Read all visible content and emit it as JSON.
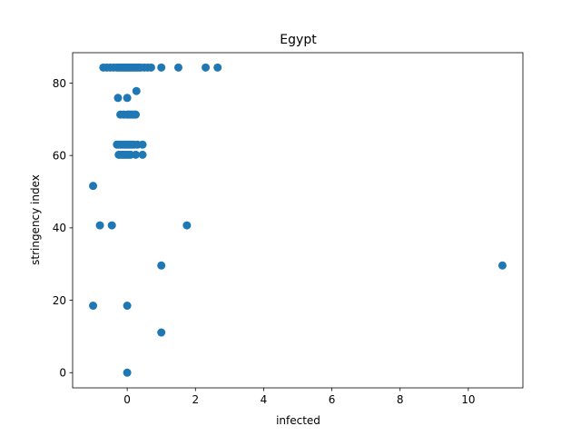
{
  "chart_data": {
    "type": "scatter",
    "title": "Egypt",
    "xlabel": "infected",
    "ylabel": "stringency index",
    "xlim": [
      -1.6,
      11.6
    ],
    "ylim": [
      -4.2,
      88.4
    ],
    "xticks": [
      0,
      2,
      4,
      6,
      8,
      10
    ],
    "yticks": [
      0,
      20,
      40,
      60,
      80
    ],
    "grid": false,
    "color": "#1f77b4",
    "points": [
      {
        "x": -0.7,
        "y": 84.3
      },
      {
        "x": -0.6,
        "y": 84.3
      },
      {
        "x": -0.5,
        "y": 84.3
      },
      {
        "x": -0.4,
        "y": 84.3
      },
      {
        "x": -0.3,
        "y": 84.3
      },
      {
        "x": -0.25,
        "y": 84.3
      },
      {
        "x": -0.2,
        "y": 84.3
      },
      {
        "x": -0.15,
        "y": 84.3
      },
      {
        "x": -0.1,
        "y": 84.3
      },
      {
        "x": -0.05,
        "y": 84.3
      },
      {
        "x": 0,
        "y": 84.3
      },
      {
        "x": 0.05,
        "y": 84.3
      },
      {
        "x": 0.1,
        "y": 84.3
      },
      {
        "x": 0.15,
        "y": 84.3
      },
      {
        "x": 0.2,
        "y": 84.3
      },
      {
        "x": 0.25,
        "y": 84.3
      },
      {
        "x": 0.3,
        "y": 84.3
      },
      {
        "x": 0.35,
        "y": 84.3
      },
      {
        "x": 0.4,
        "y": 84.3
      },
      {
        "x": 0.5,
        "y": 84.3
      },
      {
        "x": 0.6,
        "y": 84.3
      },
      {
        "x": 0.7,
        "y": 84.3
      },
      {
        "x": 1.0,
        "y": 84.3
      },
      {
        "x": 1.5,
        "y": 84.3
      },
      {
        "x": 2.3,
        "y": 84.3
      },
      {
        "x": 2.65,
        "y": 84.3
      },
      {
        "x": 0.27,
        "y": 77.8
      },
      {
        "x": -0.27,
        "y": 75.9
      },
      {
        "x": 0,
        "y": 75.9
      },
      {
        "x": -0.2,
        "y": 71.3
      },
      {
        "x": -0.1,
        "y": 71.3
      },
      {
        "x": 0,
        "y": 71.3
      },
      {
        "x": 0.05,
        "y": 71.3
      },
      {
        "x": 0.1,
        "y": 71.3
      },
      {
        "x": 0.15,
        "y": 71.3
      },
      {
        "x": 0.2,
        "y": 71.3
      },
      {
        "x": 0.25,
        "y": 71.3
      },
      {
        "x": -0.3,
        "y": 63.0
      },
      {
        "x": -0.25,
        "y": 63.0
      },
      {
        "x": -0.2,
        "y": 63.0
      },
      {
        "x": -0.15,
        "y": 63.0
      },
      {
        "x": -0.1,
        "y": 63.0
      },
      {
        "x": -0.05,
        "y": 63.0
      },
      {
        "x": 0,
        "y": 63.0
      },
      {
        "x": 0.05,
        "y": 63.0
      },
      {
        "x": 0.1,
        "y": 63.0
      },
      {
        "x": 0.15,
        "y": 63.0
      },
      {
        "x": 0.2,
        "y": 63.0
      },
      {
        "x": 0.3,
        "y": 63.0
      },
      {
        "x": 0.45,
        "y": 63.0
      },
      {
        "x": -0.25,
        "y": 60.2
      },
      {
        "x": -0.2,
        "y": 60.2
      },
      {
        "x": -0.15,
        "y": 60.2
      },
      {
        "x": -0.1,
        "y": 60.2
      },
      {
        "x": -0.05,
        "y": 60.2
      },
      {
        "x": 0,
        "y": 60.2
      },
      {
        "x": 0.05,
        "y": 60.2
      },
      {
        "x": 0.1,
        "y": 60.2
      },
      {
        "x": 0.25,
        "y": 60.2
      },
      {
        "x": 0.45,
        "y": 60.2
      },
      {
        "x": -1.0,
        "y": 51.6
      },
      {
        "x": -0.8,
        "y": 40.7
      },
      {
        "x": -0.45,
        "y": 40.7
      },
      {
        "x": 1.75,
        "y": 40.7
      },
      {
        "x": 1.0,
        "y": 29.6
      },
      {
        "x": 11.0,
        "y": 29.6
      },
      {
        "x": -1.0,
        "y": 18.5
      },
      {
        "x": 0,
        "y": 18.5
      },
      {
        "x": 1.0,
        "y": 11.1
      },
      {
        "x": 0,
        "y": 0
      }
    ]
  }
}
